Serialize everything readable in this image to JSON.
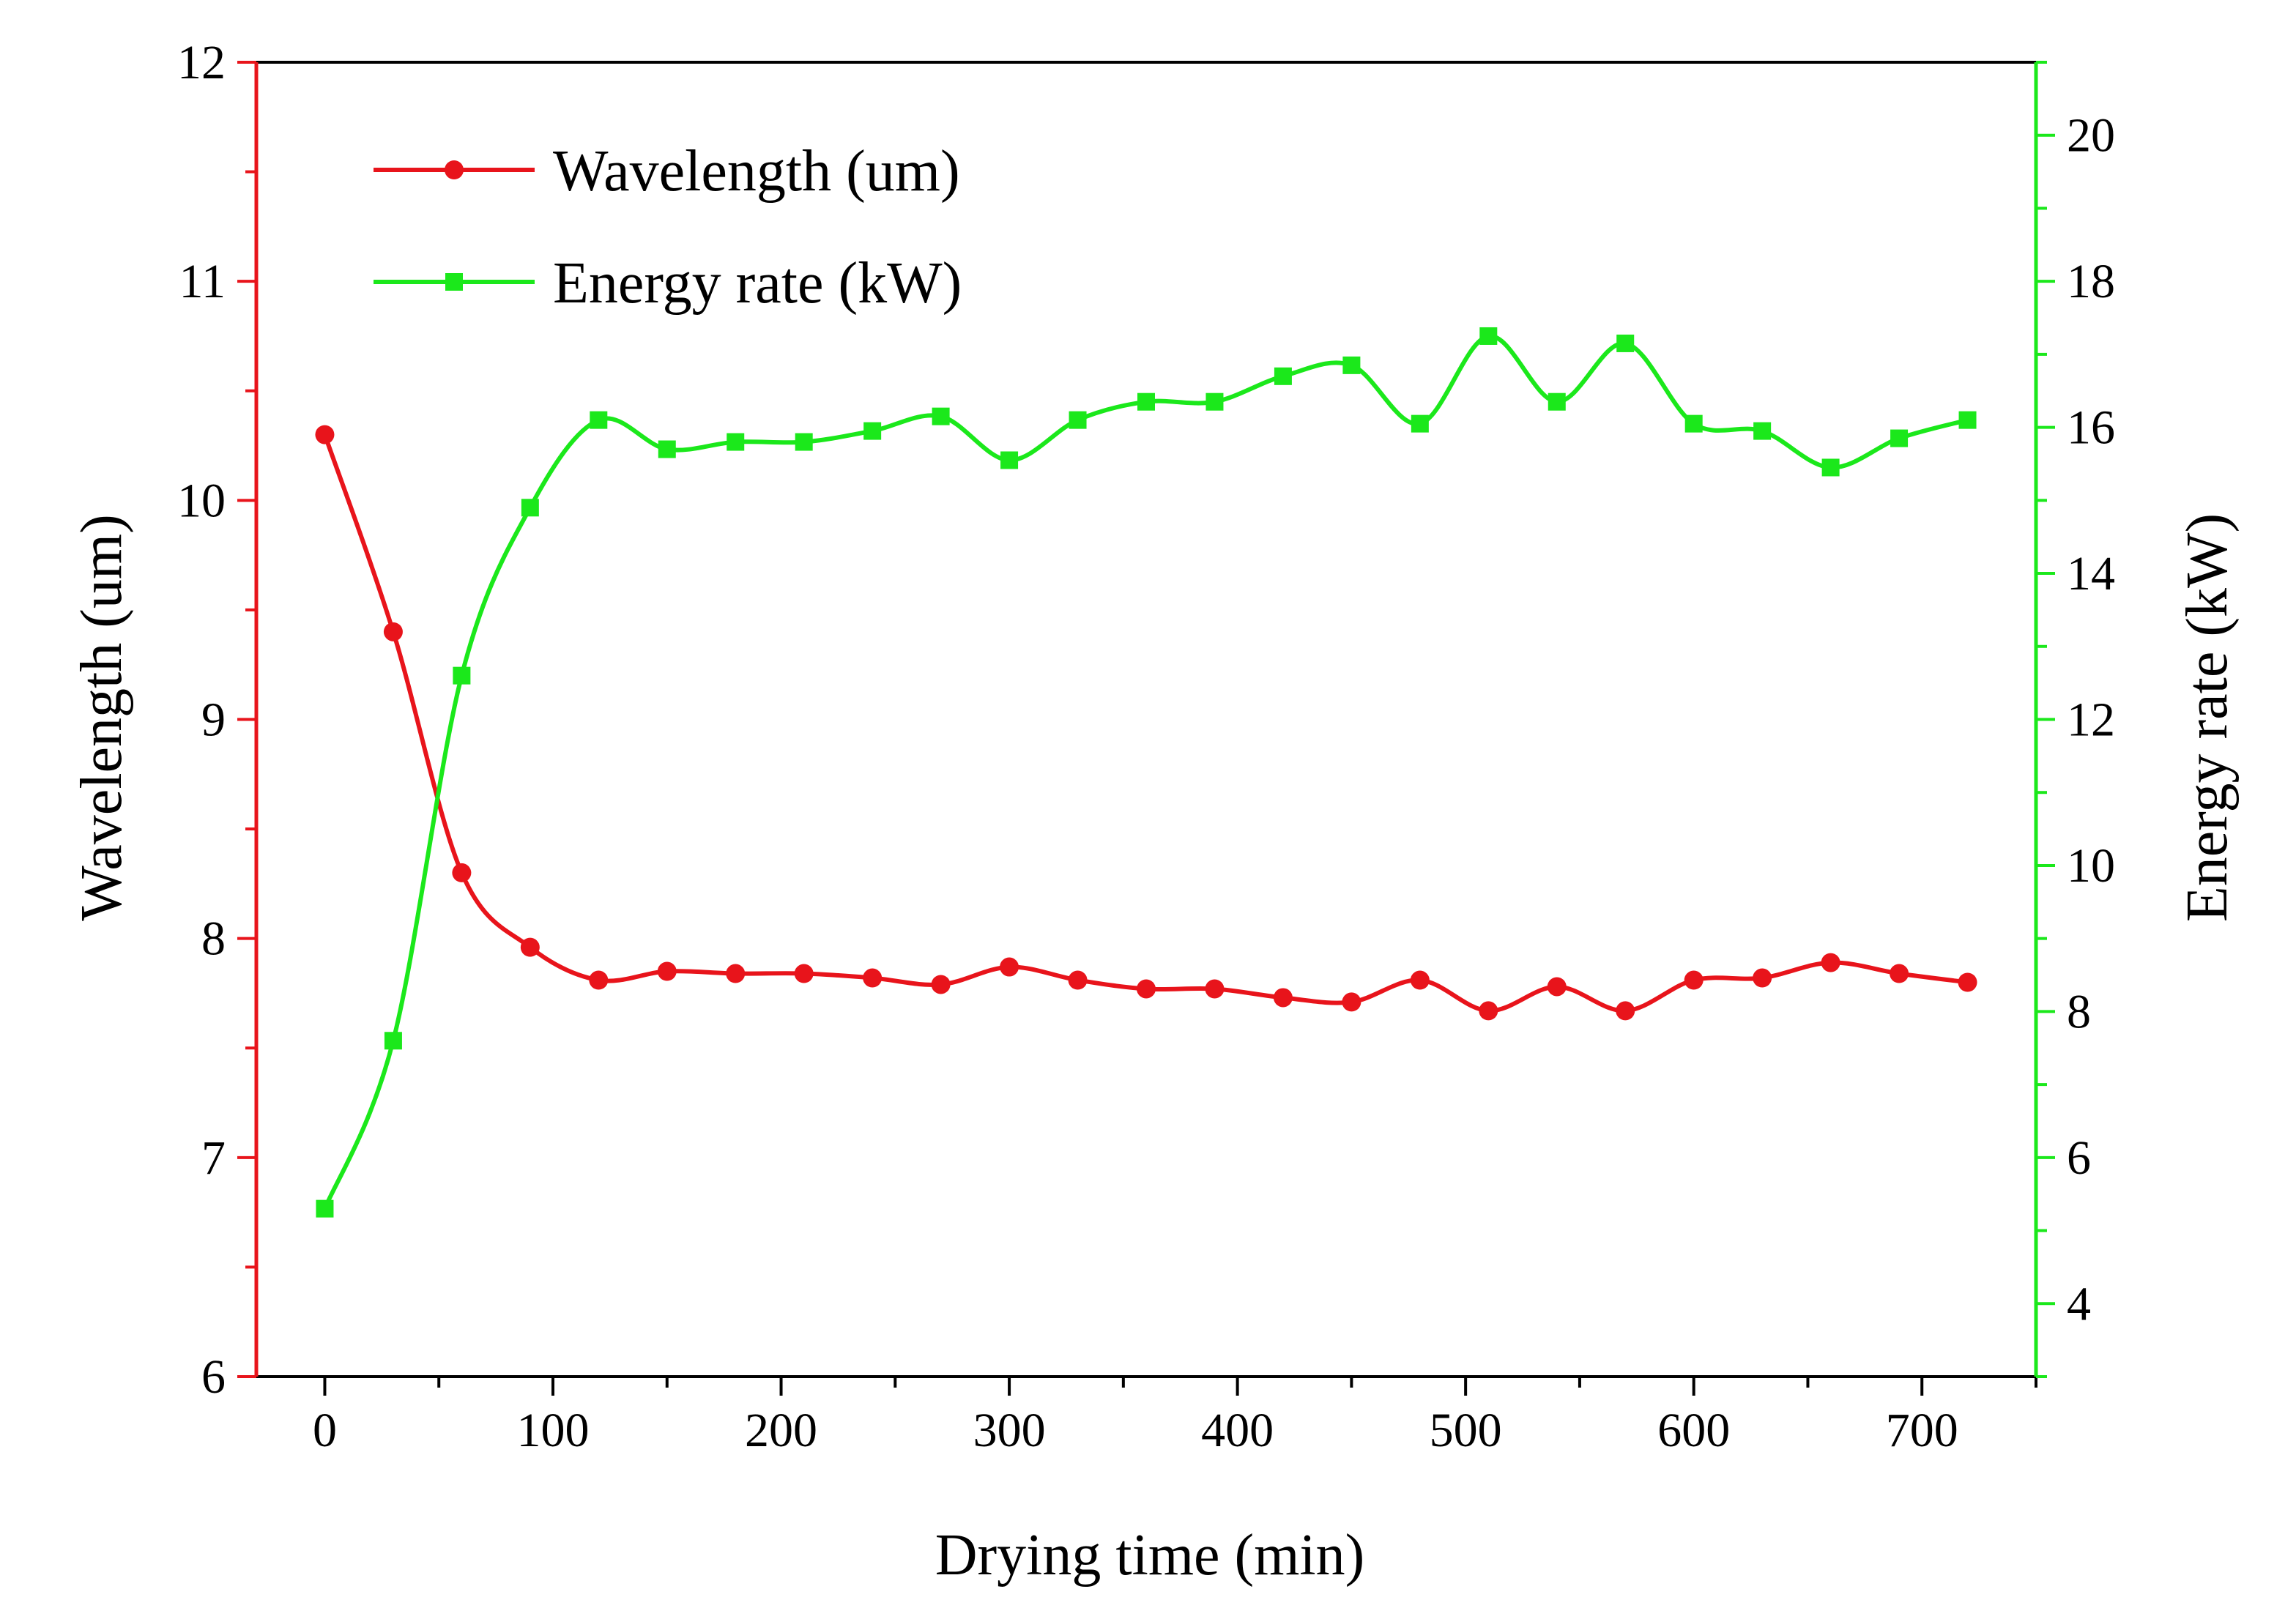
{
  "chart_data": {
    "type": "line",
    "title": "",
    "xlabel": "Drying time (min)",
    "ylabel_left": "Wavelength (um)",
    "ylabel_right": "Energy rate (kW)",
    "xlim": [
      -30,
      750
    ],
    "ylim_left": [
      6,
      12
    ],
    "ylim_right": [
      3,
      21
    ],
    "x_ticks": [
      0,
      100,
      200,
      300,
      400,
      500,
      600,
      700
    ],
    "y_left_ticks": [
      6,
      7,
      8,
      9,
      10,
      11,
      12
    ],
    "y_right_ticks": [
      4,
      6,
      8,
      10,
      12,
      14,
      16,
      18,
      20
    ],
    "grid": false,
    "legend_position": "top-left",
    "x": [
      0,
      30,
      60,
      90,
      120,
      150,
      180,
      210,
      240,
      270,
      300,
      330,
      360,
      390,
      420,
      450,
      480,
      510,
      540,
      570,
      600,
      630,
      660,
      690,
      720
    ],
    "series": [
      {
        "name": "Wavelength (um)",
        "axis": "left",
        "marker": "circle",
        "color": "#e8141b",
        "values": [
          10.3,
          9.4,
          8.3,
          7.96,
          7.81,
          7.85,
          7.84,
          7.84,
          7.82,
          7.79,
          7.87,
          7.81,
          7.77,
          7.77,
          7.73,
          7.71,
          7.81,
          7.67,
          7.78,
          7.67,
          7.81,
          7.82,
          7.89,
          7.84,
          7.8
        ]
      },
      {
        "name": "Energy rate (kW)",
        "axis": "right",
        "marker": "square",
        "color": "#1be81b",
        "values": [
          5.3,
          7.6,
          12.6,
          14.9,
          16.1,
          15.7,
          15.8,
          15.8,
          15.95,
          16.15,
          15.55,
          16.1,
          16.35,
          16.35,
          16.7,
          16.85,
          16.05,
          17.25,
          16.35,
          17.15,
          16.05,
          15.95,
          15.45,
          15.85,
          16.1
        ]
      }
    ]
  }
}
